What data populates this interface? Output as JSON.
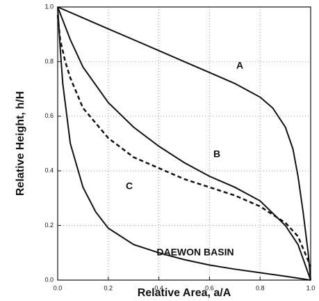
{
  "chart_data": {
    "type": "line",
    "xlabel": "Relative Area, a/A",
    "ylabel": "Relative Height, h/H",
    "xlim": [
      0,
      1
    ],
    "ylim": [
      0,
      1
    ],
    "xticks": [
      {
        "value": 0,
        "label": "0.0"
      },
      0.2,
      0.4,
      0.6,
      0.8,
      {
        "value": 1,
        "label": "1.0"
      }
    ],
    "yticks": [
      {
        "value": 0,
        "label": "0.0"
      },
      0.2,
      0.4,
      0.6,
      0.8,
      {
        "value": 1,
        "label": "1.0"
      }
    ],
    "grid": true,
    "series": [
      {
        "name": "A",
        "color": "#111111",
        "dash": false,
        "x": [
          0,
          0.1,
          0.2,
          0.3,
          0.4,
          0.5,
          0.6,
          0.7,
          0.8,
          0.85,
          0.9,
          0.93,
          0.95,
          0.97,
          0.99,
          1.0
        ],
        "values": [
          1.0,
          0.96,
          0.92,
          0.88,
          0.84,
          0.8,
          0.76,
          0.72,
          0.67,
          0.63,
          0.56,
          0.48,
          0.38,
          0.25,
          0.1,
          0.0
        ]
      },
      {
        "name": "B",
        "color": "#111111",
        "dash": false,
        "x": [
          0,
          0.05,
          0.1,
          0.2,
          0.3,
          0.4,
          0.5,
          0.6,
          0.7,
          0.8,
          0.9,
          0.95,
          1.0
        ],
        "values": [
          1.0,
          0.88,
          0.78,
          0.65,
          0.56,
          0.49,
          0.43,
          0.38,
          0.34,
          0.29,
          0.2,
          0.13,
          0.0
        ]
      },
      {
        "name": "C",
        "color": "#111111",
        "dash": false,
        "x": [
          0,
          0.01,
          0.02,
          0.05,
          0.1,
          0.15,
          0.2,
          0.3,
          0.4,
          0.5,
          0.6,
          0.7,
          0.8,
          0.9,
          1.0
        ],
        "values": [
          1.0,
          0.85,
          0.72,
          0.5,
          0.34,
          0.25,
          0.19,
          0.13,
          0.1,
          0.075,
          0.055,
          0.04,
          0.027,
          0.014,
          0.0
        ]
      },
      {
        "name": "DAEWON BASIN",
        "color": "#111111",
        "dash": true,
        "x": [
          0,
          0.01,
          0.03,
          0.05,
          0.1,
          0.2,
          0.3,
          0.4,
          0.5,
          0.6,
          0.7,
          0.8,
          0.9,
          0.95,
          1.0
        ],
        "values": [
          0.97,
          0.88,
          0.8,
          0.74,
          0.63,
          0.52,
          0.45,
          0.41,
          0.37,
          0.34,
          0.31,
          0.27,
          0.21,
          0.16,
          0.05
        ]
      }
    ]
  }
}
